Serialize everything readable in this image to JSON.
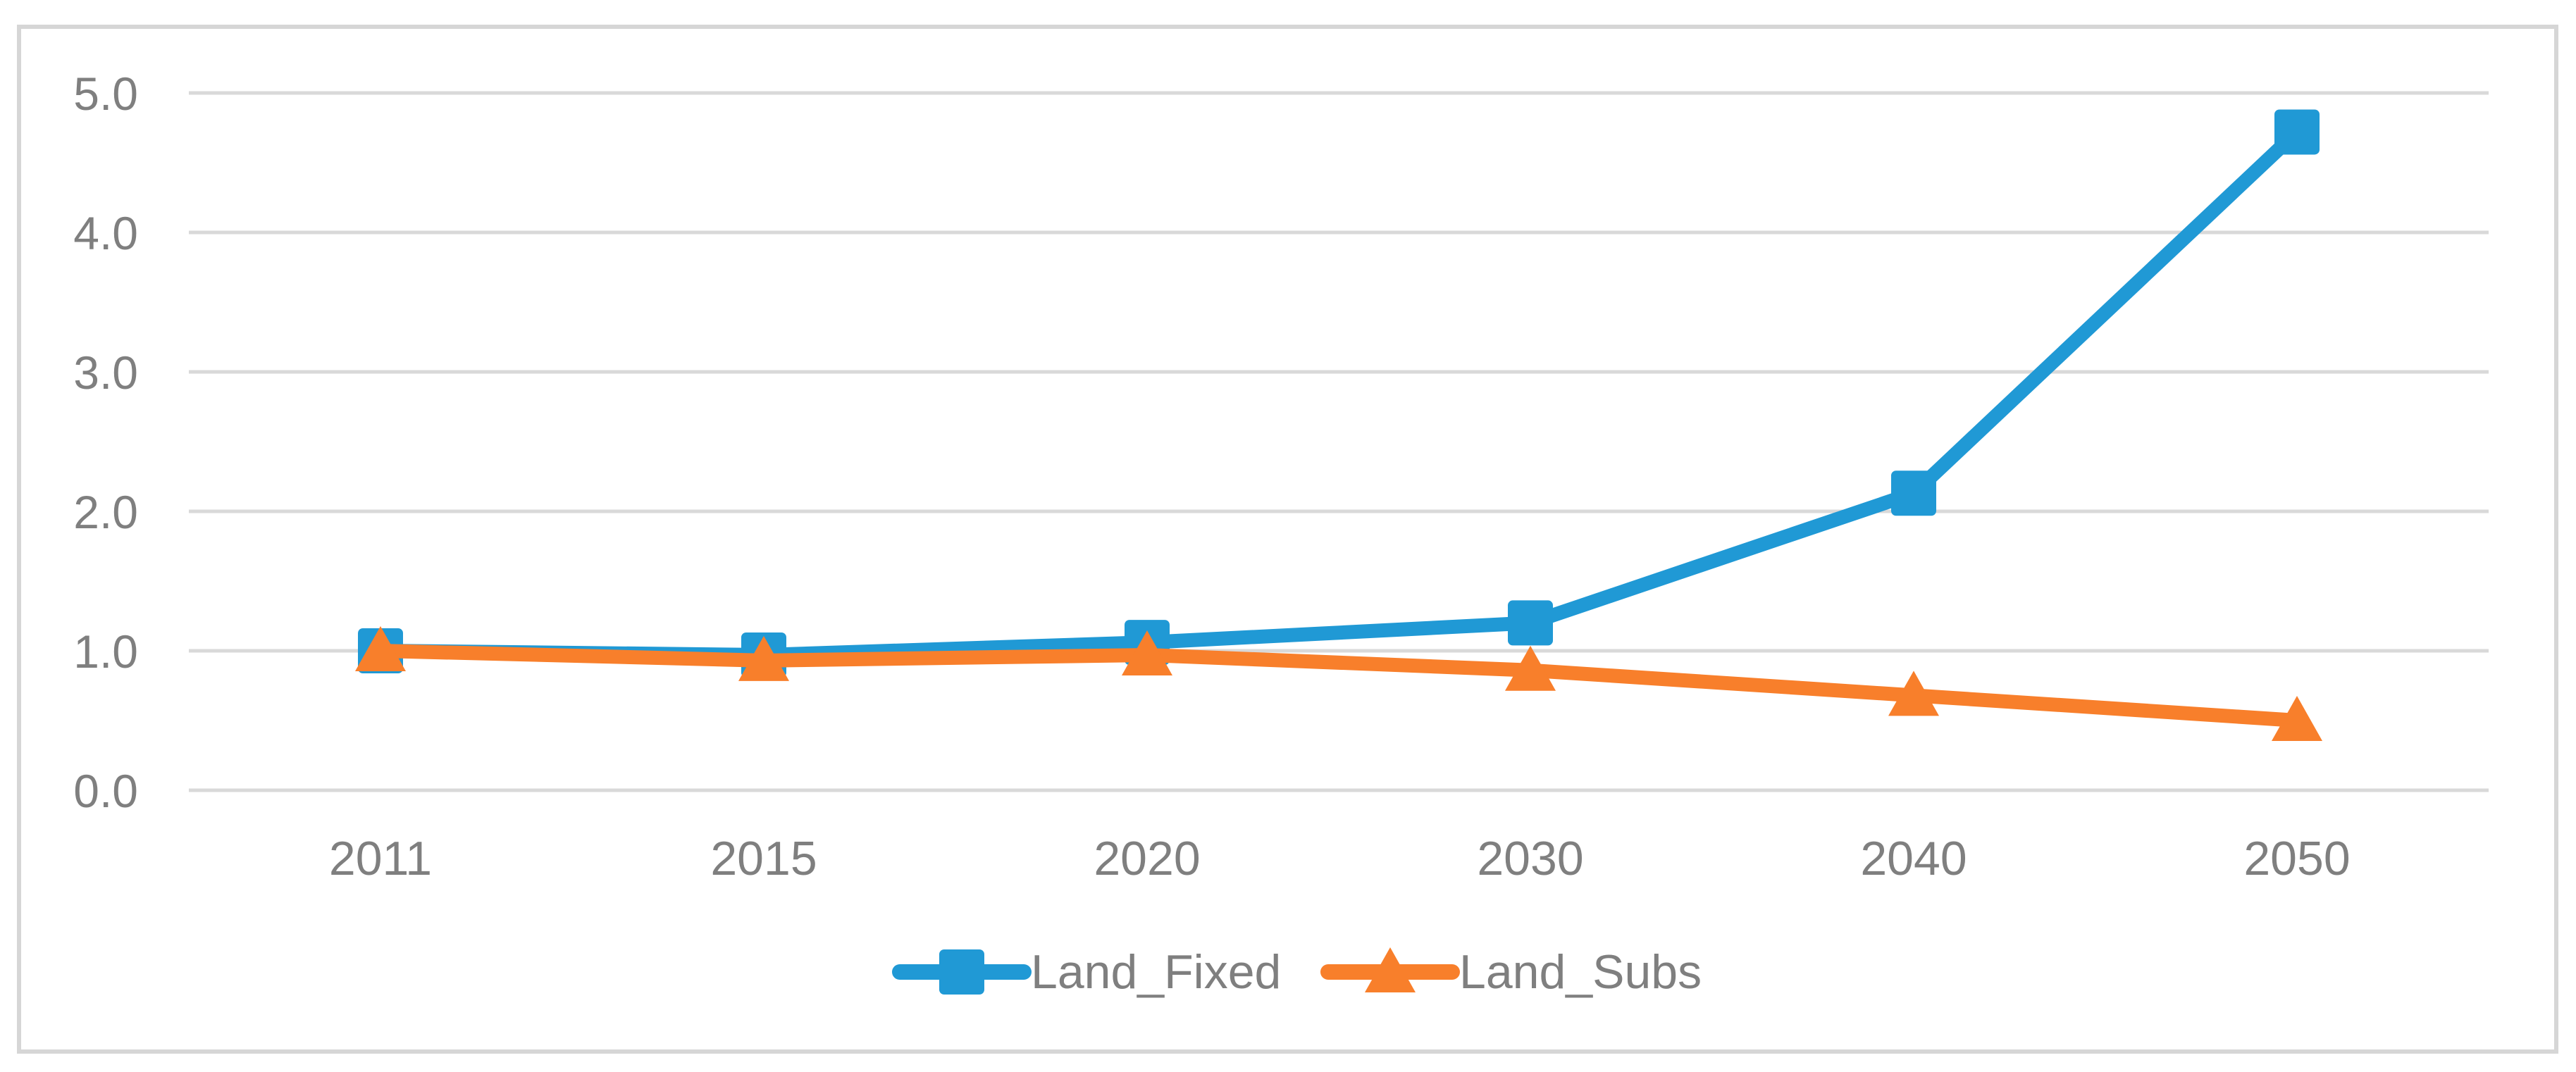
{
  "figure": {
    "background_color": "#FFFFFF",
    "frame_color": "#D6D6D6"
  },
  "chart_data": {
    "type": "line",
    "categories": [
      "2011",
      "2015",
      "2020",
      "2030",
      "2040",
      "2050"
    ],
    "series": [
      {
        "name": "Land_Fixed",
        "color": "#2099D5",
        "marker": "square",
        "values": [
          1.0,
          0.97,
          1.06,
          1.2,
          2.13,
          4.72
        ]
      },
      {
        "name": "Land_Subs",
        "color": "#F87F2B",
        "marker": "triangle",
        "values": [
          1.0,
          0.93,
          0.97,
          0.86,
          0.68,
          0.5
        ]
      }
    ],
    "title": "",
    "xlabel": "",
    "ylabel": "",
    "ylim": [
      0.0,
      5.0
    ],
    "ytick_labels": [
      "0.0",
      "1.0",
      "2.0",
      "3.0",
      "4.0",
      "5.0"
    ],
    "grid": "horizontal",
    "gridline_color": "#D9D9D9",
    "tick_label_color": "#7F7F7F",
    "legend_position": "bottom-center",
    "legend_labels": [
      "Land_Fixed",
      "Land_Subs"
    ]
  }
}
